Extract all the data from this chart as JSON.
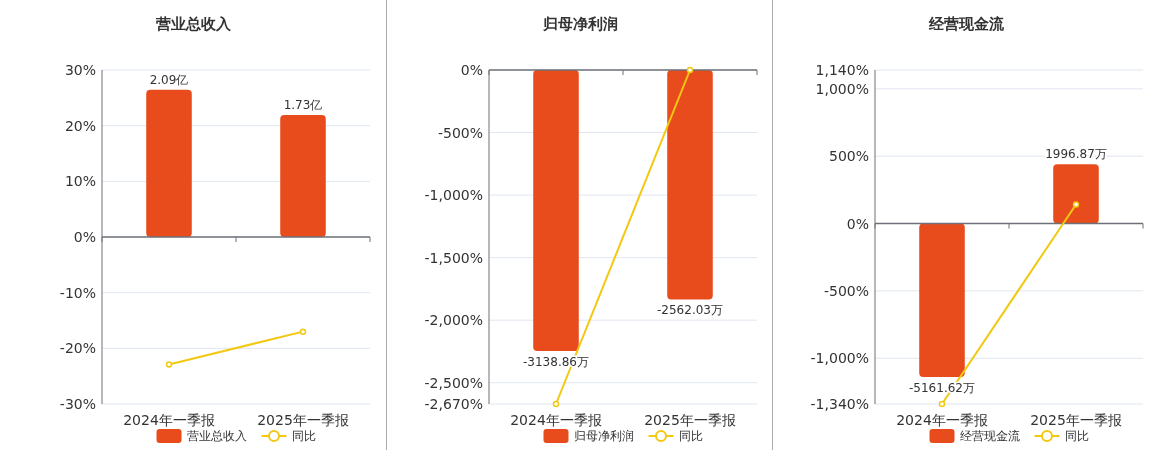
{
  "chart_data": [
    {
      "type": "bar",
      "title": "营业总收入",
      "categories": [
        "2024年一季报",
        "2025年一季报"
      ],
      "series": [
        {
          "name": "营业总收入",
          "axis": "y2",
          "color": "#e84c1c",
          "values": [
            2.09,
            1.73
          ],
          "value_labels": [
            "2.09亿",
            "1.73亿"
          ]
        },
        {
          "name": "同比",
          "type": "line",
          "color": "#f2c811",
          "values": [
            -22.9,
            -17.0
          ]
        }
      ],
      "ylim": [
        -30,
        30
      ],
      "yticks": [
        {
          "value": 30,
          "label": "30%"
        },
        {
          "value": 20,
          "label": "20%"
        },
        {
          "value": 10,
          "label": "10%"
        },
        {
          "value": 0,
          "label": "0%"
        },
        {
          "value": -10,
          "label": "-10%"
        },
        {
          "value": -20,
          "label": "-20%"
        },
        {
          "value": -30,
          "label": "-30%"
        }
      ],
      "y2lim": [
        -2.37,
        2.37
      ],
      "grid": "y",
      "legend": "bottom",
      "marker": "circle"
    },
    {
      "type": "bar",
      "title": "归母净利润",
      "categories": [
        "2024年一季报",
        "2025年一季报"
      ],
      "series": [
        {
          "name": "归母净利润",
          "axis": "y2",
          "color": "#e84c1c",
          "values": [
            -3138.86,
            -2562.03
          ],
          "value_labels": [
            "-3138.86万",
            "-2562.03万"
          ]
        },
        {
          "name": "同比",
          "type": "line",
          "color": "#f2c811",
          "values": [
            -2670,
            0
          ]
        }
      ],
      "ylim": [
        -2670,
        0
      ],
      "yticks": [
        {
          "value": 0,
          "label": "0%"
        },
        {
          "value": -500,
          "label": "-500%"
        },
        {
          "value": -1000,
          "label": "-1,000%"
        },
        {
          "value": -1500,
          "label": "-1,500%"
        },
        {
          "value": -2000,
          "label": "-2,000%"
        },
        {
          "value": -2500,
          "label": "-2,500%"
        },
        {
          "value": -2670,
          "label": "-2,670%"
        }
      ],
      "y2lim": [
        -3730,
        0
      ],
      "grid": "y",
      "legend": "bottom",
      "marker": "circle"
    },
    {
      "type": "bar",
      "title": "经营现金流",
      "categories": [
        "2024年一季报",
        "2025年一季报"
      ],
      "series": [
        {
          "name": "经营现金流",
          "axis": "y2",
          "color": "#e84c1c",
          "values": [
            -5161.62,
            1996.87
          ],
          "value_labels": [
            "-5161.62万",
            "1996.87万"
          ]
        },
        {
          "name": "同比",
          "type": "line",
          "color": "#f2c811",
          "values": [
            -1340,
            141
          ]
        }
      ],
      "ylim": [
        -1340,
        1140
      ],
      "yticks": [
        {
          "value": 1140,
          "label": "1,140%"
        },
        {
          "value": 1000,
          "label": "1,000%"
        },
        {
          "value": 500,
          "label": "500%"
        },
        {
          "value": 0,
          "label": "0%"
        },
        {
          "value": -500,
          "label": "-500%"
        },
        {
          "value": -1000,
          "label": "-1,000%"
        },
        {
          "value": -1340,
          "label": "-1,340%"
        }
      ],
      "y2lim": [
        -6070,
        5164
      ],
      "grid": "y",
      "legend": "bottom",
      "marker": "circle"
    }
  ]
}
